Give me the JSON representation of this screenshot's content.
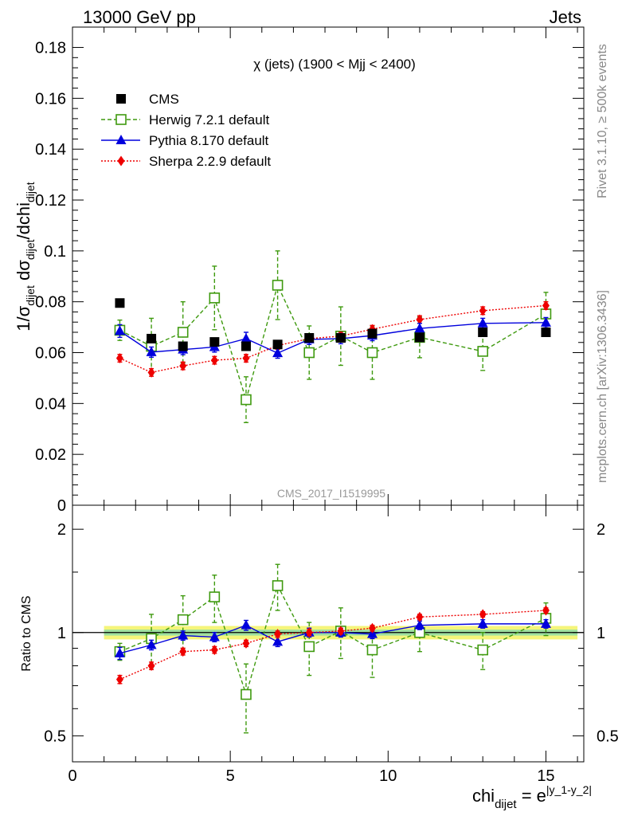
{
  "header": {
    "left": "13000 GeV pp",
    "right": "Jets"
  },
  "side_labels": {
    "rivet": "Rivet 3.1.10, ≥ 500k events",
    "mcplots": "mcplots.cern.ch [arXiv:1306.3436]"
  },
  "chart_data": [
    {
      "type": "scatter",
      "title": "χ (jets) (1900 < Mjj < 2400)",
      "watermark": "CMS_2017_I1519995",
      "ylabel": "1/σ_dijet dσ_dijet/dchi_dijet",
      "ylim": [
        0,
        0.188
      ],
      "yticks": [
        0,
        0.02,
        0.04,
        0.06,
        0.08,
        0.1,
        0.12,
        0.14,
        0.16,
        0.18
      ],
      "ytick_labels": [
        "0",
        "0.02",
        "0.04",
        "0.06",
        "0.08",
        "0.1",
        "0.12",
        "0.14",
        "0.16",
        "0.18"
      ],
      "xlim": [
        0,
        16.2
      ],
      "legend_position": "top-left",
      "series": [
        {
          "name": "CMS",
          "style": "black filled squares",
          "color": "#000000",
          "x": [
            1.5,
            2.5,
            3.5,
            4.5,
            5.5,
            6.5,
            7.5,
            8.5,
            9.5,
            11,
            13,
            15
          ],
          "values": [
            0.0795,
            0.0655,
            0.0625,
            0.0642,
            0.0625,
            0.0632,
            0.0658,
            0.0658,
            0.0675,
            0.066,
            0.068,
            0.068
          ],
          "errors": [
            0.0015,
            0.0012,
            0.0012,
            0.0012,
            0.0012,
            0.0012,
            0.0012,
            0.0012,
            0.0012,
            0.0012,
            0.0015,
            0.0015
          ]
        },
        {
          "name": "Herwig 7.2.1 default",
          "style": "green open squares, dashed line",
          "color": "#3f9a0f",
          "x": [
            1.5,
            2.5,
            3.5,
            4.5,
            5.5,
            6.5,
            7.5,
            8.5,
            9.5,
            11,
            13,
            15
          ],
          "values": [
            0.0688,
            0.0625,
            0.068,
            0.0815,
            0.0415,
            0.0865,
            0.06,
            0.0665,
            0.06,
            0.066,
            0.0605,
            0.0752
          ],
          "errors": [
            0.004,
            0.011,
            0.012,
            0.0125,
            0.009,
            0.0135,
            0.0105,
            0.0115,
            0.0105,
            0.008,
            0.0075,
            0.0085
          ]
        },
        {
          "name": "Pythia 8.170 default",
          "style": "blue filled triangles, solid line",
          "color": "#0000dd",
          "x": [
            1.5,
            2.5,
            3.5,
            4.5,
            5.5,
            6.5,
            7.5,
            8.5,
            9.5,
            11,
            13,
            15
          ],
          "values": [
            0.0685,
            0.0602,
            0.0612,
            0.0622,
            0.0655,
            0.0598,
            0.0652,
            0.0655,
            0.0667,
            0.0695,
            0.0715,
            0.0718
          ],
          "errors": [
            0.0025,
            0.002,
            0.002,
            0.002,
            0.0025,
            0.002,
            0.002,
            0.002,
            0.002,
            0.002,
            0.002,
            0.002
          ]
        },
        {
          "name": "Sherpa 2.2.9 default",
          "style": "red filled diamonds, dotted line",
          "color": "#ee0000",
          "x": [
            1.5,
            2.5,
            3.5,
            4.5,
            5.5,
            6.5,
            7.5,
            8.5,
            9.5,
            11,
            13,
            15
          ],
          "values": [
            0.0578,
            0.0522,
            0.0548,
            0.057,
            0.0578,
            0.0628,
            0.0655,
            0.0665,
            0.0692,
            0.073,
            0.0765,
            0.0785
          ],
          "errors": [
            0.0015,
            0.0015,
            0.0015,
            0.0015,
            0.0015,
            0.0015,
            0.0015,
            0.0015,
            0.0015,
            0.0015,
            0.0015,
            0.0015
          ]
        }
      ]
    },
    {
      "type": "scatter",
      "title": "",
      "ylabel": "Ratio to CMS",
      "xlabel": "chi_dijet = e^|y_1-y_2|",
      "ylog": true,
      "ylim": [
        0.42,
        2.35
      ],
      "yticks": [
        0.5,
        1,
        2
      ],
      "ytick_labels": [
        "0.5",
        "1",
        "2"
      ],
      "xlim": [
        0,
        16.2
      ],
      "xticks": [
        0,
        5,
        10,
        15
      ],
      "xtick_labels": [
        "0",
        "5",
        "10",
        "15"
      ],
      "reference_band": {
        "x_range": [
          1,
          16
        ],
        "inner_halfwidth": 0.02,
        "outer_halfwidth": 0.045,
        "inner_color": "#9ee0a0",
        "outer_color": "#f5f57a"
      },
      "series": [
        {
          "name": "Herwig 7.2.1 default",
          "color": "#3f9a0f",
          "x": [
            1.5,
            2.5,
            3.5,
            4.5,
            5.5,
            6.5,
            7.5,
            8.5,
            9.5,
            11,
            13,
            15
          ],
          "values": [
            0.88,
            0.96,
            1.09,
            1.27,
            0.66,
            1.37,
            0.91,
            1.01,
            0.89,
            1.0,
            0.89,
            1.1
          ],
          "errors": [
            0.05,
            0.17,
            0.19,
            0.2,
            0.15,
            0.21,
            0.16,
            0.17,
            0.15,
            0.12,
            0.11,
            0.12
          ]
        },
        {
          "name": "Pythia 8.170 default",
          "color": "#0000dd",
          "x": [
            1.5,
            2.5,
            3.5,
            4.5,
            5.5,
            6.5,
            7.5,
            8.5,
            9.5,
            11,
            13,
            15
          ],
          "values": [
            0.87,
            0.92,
            0.98,
            0.97,
            1.05,
            0.94,
            1.0,
            1.0,
            0.99,
            1.05,
            1.06,
            1.06
          ],
          "errors": [
            0.035,
            0.03,
            0.03,
            0.03,
            0.035,
            0.03,
            0.03,
            0.03,
            0.03,
            0.03,
            0.03,
            0.03
          ]
        },
        {
          "name": "Sherpa 2.2.9 default",
          "color": "#ee0000",
          "x": [
            1.5,
            2.5,
            3.5,
            4.5,
            5.5,
            6.5,
            7.5,
            8.5,
            9.5,
            11,
            13,
            15
          ],
          "values": [
            0.73,
            0.8,
            0.88,
            0.89,
            0.93,
            0.99,
            1.0,
            1.01,
            1.03,
            1.11,
            1.13,
            1.16
          ],
          "errors": [
            0.02,
            0.02,
            0.02,
            0.02,
            0.02,
            0.02,
            0.02,
            0.02,
            0.02,
            0.02,
            0.02,
            0.02
          ]
        }
      ]
    }
  ]
}
